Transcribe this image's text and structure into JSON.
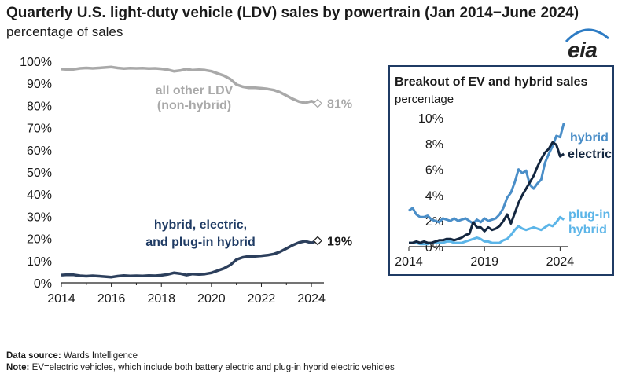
{
  "title": "Quarterly U.S. light-duty vehicle (LDV) sales by powertrain (Jan 2014−June 2024)",
  "subtitle": "percentage of sales",
  "logo": "eia",
  "colors": {
    "other": "#a9a9a9",
    "ev_total": "#2c3f5c",
    "hybrid": "#4a8ec8",
    "electric": "#13263f",
    "plugin": "#5cb5e8",
    "inset_border": "#1f3b64"
  },
  "chart_data": [
    {
      "type": "line",
      "title": "",
      "ylabel": "percentage of sales",
      "xlim": [
        2014,
        2024.5
      ],
      "ylim": [
        0,
        100
      ],
      "x_ticks": [
        "2014",
        "2016",
        "2018",
        "2020",
        "2022",
        "2024"
      ],
      "y_ticks": [
        "0%",
        "10%",
        "20%",
        "30%",
        "40%",
        "50%",
        "60%",
        "70%",
        "80%",
        "90%",
        "100%"
      ],
      "grid": false,
      "series": [
        {
          "name": "all other LDV (non-hybrid)",
          "label_line1": "all other LDV",
          "label_line2": "(non-hybrid)",
          "end_label": "81%",
          "x": [
            2014.0,
            2014.25,
            2014.5,
            2014.75,
            2015.0,
            2015.25,
            2015.5,
            2015.75,
            2016.0,
            2016.25,
            2016.5,
            2016.75,
            2017.0,
            2017.25,
            2017.5,
            2017.75,
            2018.0,
            2018.25,
            2018.5,
            2018.75,
            2019.0,
            2019.25,
            2019.5,
            2019.75,
            2020.0,
            2020.25,
            2020.5,
            2020.75,
            2021.0,
            2021.25,
            2021.5,
            2021.75,
            2022.0,
            2022.25,
            2022.5,
            2022.75,
            2023.0,
            2023.25,
            2023.5,
            2023.75,
            2024.0,
            2024.25
          ],
          "values": [
            96.5,
            96.3,
            96.4,
            96.8,
            97.0,
            96.8,
            97.0,
            97.2,
            97.4,
            97.0,
            96.7,
            96.9,
            96.8,
            96.9,
            96.7,
            96.8,
            96.6,
            96.2,
            95.5,
            95.8,
            96.5,
            96.0,
            96.2,
            96.0,
            95.5,
            94.5,
            93.5,
            92.0,
            89.5,
            88.5,
            88.0,
            88.0,
            87.8,
            87.5,
            87.0,
            86.0,
            84.5,
            83.0,
            81.8,
            81.2,
            82.0,
            81.0
          ]
        },
        {
          "name": "hybrid, electric, and plug-in hybrid",
          "label_line1": "hybrid, electric,",
          "label_line2": "and plug-in hybrid",
          "end_label": "19%",
          "x": [
            2014.0,
            2014.25,
            2014.5,
            2014.75,
            2015.0,
            2015.25,
            2015.5,
            2015.75,
            2016.0,
            2016.25,
            2016.5,
            2016.75,
            2017.0,
            2017.25,
            2017.5,
            2017.75,
            2018.0,
            2018.25,
            2018.5,
            2018.75,
            2019.0,
            2019.25,
            2019.5,
            2019.75,
            2020.0,
            2020.25,
            2020.5,
            2020.75,
            2021.0,
            2021.25,
            2021.5,
            2021.75,
            2022.0,
            2022.25,
            2022.5,
            2022.75,
            2023.0,
            2023.25,
            2023.5,
            2023.75,
            2024.0,
            2024.25
          ],
          "values": [
            3.5,
            3.7,
            3.6,
            3.2,
            3.0,
            3.2,
            3.0,
            2.8,
            2.6,
            3.0,
            3.3,
            3.1,
            3.2,
            3.1,
            3.3,
            3.2,
            3.4,
            3.8,
            4.5,
            4.2,
            3.5,
            4.0,
            3.8,
            4.0,
            4.5,
            5.5,
            6.5,
            8.0,
            10.5,
            11.5,
            12.0,
            12.0,
            12.2,
            12.5,
            13.0,
            14.0,
            15.5,
            17.0,
            18.2,
            18.8,
            18.0,
            19.0
          ]
        }
      ]
    },
    {
      "type": "line",
      "title": "Breakout of EV and hybrid sales",
      "ylabel": "percentage",
      "xlim": [
        2014,
        2024.5
      ],
      "ylim": [
        0,
        10
      ],
      "x_ticks": [
        "2014",
        "2019",
        "2024"
      ],
      "y_ticks": [
        "0%",
        "2%",
        "4%",
        "6%",
        "8%",
        "10%"
      ],
      "grid": false,
      "series": [
        {
          "name": "hybrid",
          "x": [
            2014.0,
            2014.25,
            2014.5,
            2014.75,
            2015.0,
            2015.25,
            2015.5,
            2015.75,
            2016.0,
            2016.25,
            2016.5,
            2016.75,
            2017.0,
            2017.25,
            2017.5,
            2017.75,
            2018.0,
            2018.25,
            2018.5,
            2018.75,
            2019.0,
            2019.25,
            2019.5,
            2019.75,
            2020.0,
            2020.25,
            2020.5,
            2020.75,
            2021.0,
            2021.25,
            2021.5,
            2021.75,
            2022.0,
            2022.25,
            2022.5,
            2022.75,
            2023.0,
            2023.25,
            2023.5,
            2023.75,
            2024.0,
            2024.25
          ],
          "values": [
            2.8,
            3.0,
            2.5,
            2.3,
            2.3,
            2.4,
            2.1,
            2.0,
            1.9,
            2.2,
            2.1,
            2.0,
            2.2,
            2.0,
            2.1,
            2.2,
            2.0,
            1.8,
            2.1,
            1.9,
            2.2,
            2.0,
            2.1,
            2.2,
            2.5,
            3.0,
            3.8,
            4.2,
            5.0,
            6.0,
            5.7,
            5.9,
            4.8,
            4.5,
            4.9,
            5.2,
            6.5,
            7.2,
            7.8,
            8.6,
            8.5,
            9.6
          ]
        },
        {
          "name": "electric",
          "x": [
            2014.0,
            2014.25,
            2014.5,
            2014.75,
            2015.0,
            2015.25,
            2015.5,
            2015.75,
            2016.0,
            2016.25,
            2016.5,
            2016.75,
            2017.0,
            2017.25,
            2017.5,
            2017.75,
            2018.0,
            2018.25,
            2018.5,
            2018.75,
            2019.0,
            2019.25,
            2019.5,
            2019.75,
            2020.0,
            2020.25,
            2020.5,
            2020.75,
            2021.0,
            2021.25,
            2021.5,
            2021.75,
            2022.0,
            2022.25,
            2022.5,
            2022.75,
            2023.0,
            2023.25,
            2023.5,
            2023.75,
            2024.0,
            2024.25
          ],
          "values": [
            0.3,
            0.3,
            0.4,
            0.3,
            0.4,
            0.3,
            0.3,
            0.4,
            0.5,
            0.5,
            0.6,
            0.6,
            0.5,
            0.6,
            0.7,
            0.9,
            1.0,
            1.9,
            1.5,
            1.5,
            1.2,
            1.5,
            1.3,
            1.4,
            1.6,
            2.0,
            2.5,
            1.8,
            2.6,
            3.4,
            4.0,
            4.5,
            5.0,
            5.5,
            6.2,
            6.8,
            7.3,
            7.6,
            8.1,
            7.9,
            7.0,
            7.2
          ]
        },
        {
          "name": "plug-in hybrid",
          "label_line1": "plug-in",
          "label_line2": "hybrid",
          "x": [
            2014.0,
            2014.25,
            2014.5,
            2014.75,
            2015.0,
            2015.25,
            2015.5,
            2015.75,
            2016.0,
            2016.25,
            2016.5,
            2016.75,
            2017.0,
            2017.25,
            2017.5,
            2017.75,
            2018.0,
            2018.25,
            2018.5,
            2018.75,
            2019.0,
            2019.25,
            2019.5,
            2019.75,
            2020.0,
            2020.25,
            2020.5,
            2020.75,
            2021.0,
            2021.25,
            2021.5,
            2021.75,
            2022.0,
            2022.25,
            2022.5,
            2022.75,
            2023.0,
            2023.25,
            2023.5,
            2023.75,
            2024.0,
            2024.25
          ],
          "values": [
            0.3,
            0.3,
            0.3,
            0.2,
            0.2,
            0.2,
            0.3,
            0.3,
            0.3,
            0.3,
            0.4,
            0.4,
            0.3,
            0.3,
            0.3,
            0.4,
            0.5,
            0.6,
            0.7,
            0.6,
            0.4,
            0.4,
            0.3,
            0.3,
            0.3,
            0.5,
            0.6,
            0.9,
            1.3,
            1.6,
            1.4,
            1.3,
            1.4,
            1.5,
            1.4,
            1.3,
            1.5,
            1.7,
            1.6,
            1.9,
            2.3,
            2.1
          ]
        }
      ]
    }
  ],
  "footer": {
    "source_label": "Data source:",
    "source_text": " Wards Intelligence",
    "note_label": "Note:",
    "note_text": " EV=electric vehicles, which include both battery electric and plug-in hybrid electric vehicles"
  }
}
